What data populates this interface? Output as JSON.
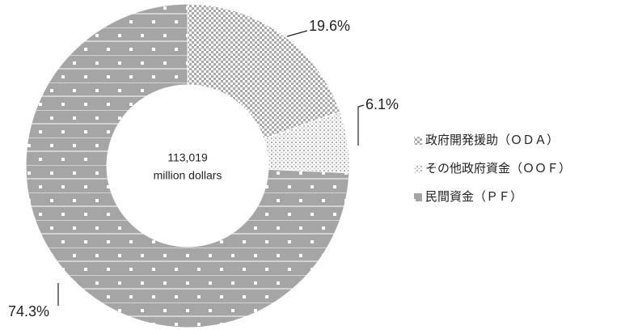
{
  "chart_data": {
    "type": "donut",
    "center_text": [
      "113,019",
      "million dollars"
    ],
    "series": [
      {
        "name": "政府開発援助（ＯＤＡ）",
        "value": 19.6,
        "value_label": "19.6%",
        "pattern": "pat-oda"
      },
      {
        "name": "その他政府資金（ＯＯＦ）",
        "value": 6.1,
        "value_label": "6.1%",
        "pattern": "pat-oof"
      },
      {
        "name": "民間資金（ＰＦ）",
        "value": 74.3,
        "value_label": "74.3%",
        "pattern": "pat-pf"
      }
    ],
    "legend": "right"
  }
}
